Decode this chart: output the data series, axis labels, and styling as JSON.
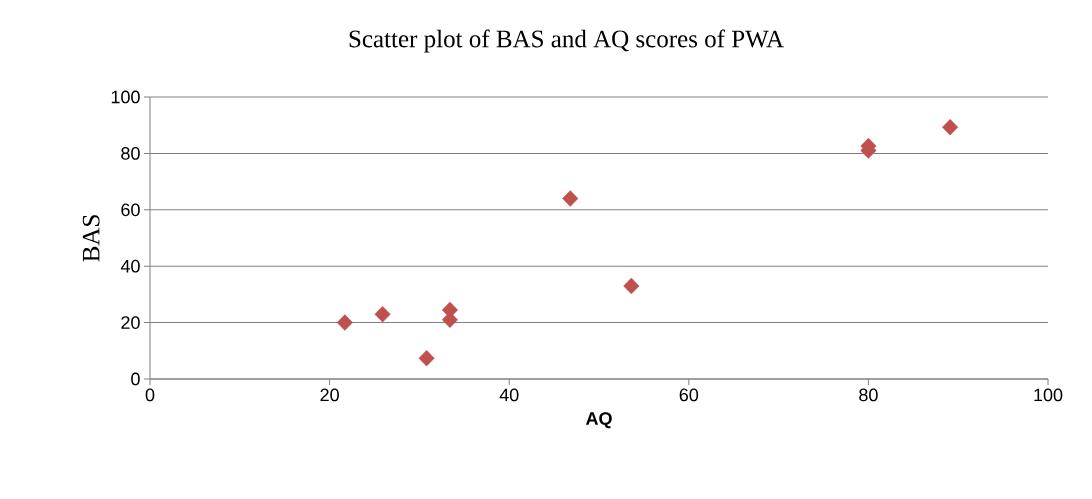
{
  "chart_data": {
    "type": "scatter",
    "title": "Scatter plot of BAS and AQ scores of PWA",
    "xlabel": "AQ",
    "ylabel": "BAS",
    "x": [
      21.7,
      25.9,
      30.8,
      33.4,
      33.4,
      46.8,
      53.6,
      80,
      80,
      89.1
    ],
    "values": [
      20,
      23,
      7.4,
      24.5,
      21,
      64,
      33,
      82.6,
      81,
      89.3
    ],
    "color": "#c0504d",
    "marker": "diamond",
    "grid": "y",
    "xlim": [
      0,
      100
    ],
    "ylim": [
      0,
      100
    ],
    "xticks": [
      0,
      20,
      40,
      60,
      80,
      100
    ],
    "yticks": [
      0,
      20,
      40,
      60,
      80,
      100
    ]
  }
}
